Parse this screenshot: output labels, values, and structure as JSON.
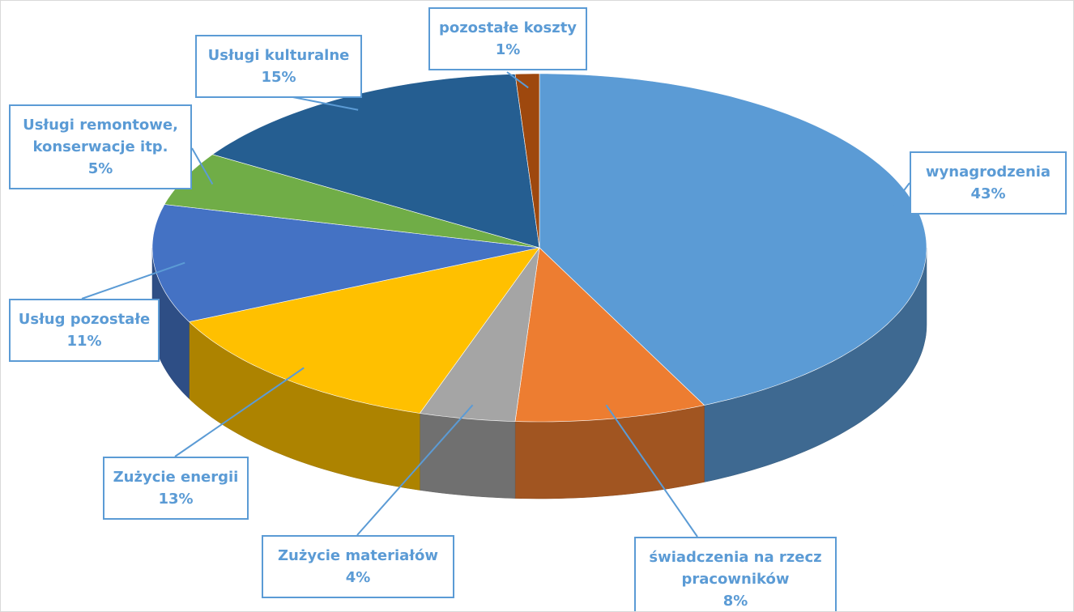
{
  "chart_data": {
    "type": "pie",
    "categories": [
      "wynagrodzenia",
      "świadczenia na rzecz pracowników",
      "Zużycie materiałów",
      "Zużycie energii",
      "Usług pozostałe",
      "Usługi remontowe, konserwacje itp.",
      "Usługi kulturalne",
      "pozostałe koszty"
    ],
    "values": [
      43,
      8,
      4,
      13,
      11,
      5,
      15,
      1
    ],
    "value_labels": [
      "43%",
      "8%",
      "4%",
      "13%",
      "11%",
      "5%",
      "15%",
      "1%"
    ],
    "colors": [
      "#5b9bd5",
      "#ed7d31",
      "#a5a5a5",
      "#ffc000",
      "#4472c4",
      "#70ad47",
      "#255e91",
      "#9e480e"
    ]
  }
}
